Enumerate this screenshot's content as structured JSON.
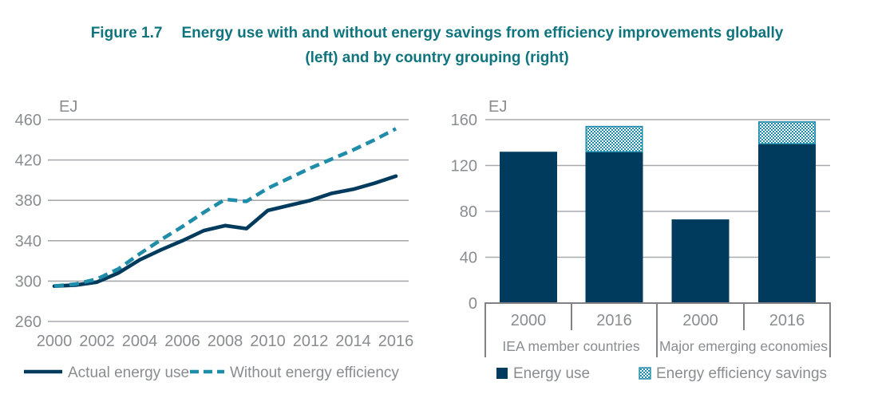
{
  "title": {
    "figure_label": "Figure 1.7",
    "line1": "Energy use with and without energy savings from efficiency improvements globally",
    "line2": "(left) and by country grouping (right)"
  },
  "colors": {
    "navy": "#003a5d",
    "teal": "#1f8caa",
    "title_teal": "#0f747e",
    "axis_text": "#8a8c8f",
    "gridline": "#a8aaad",
    "axis_line": "#808285",
    "pattern_bg": "#ffffff"
  },
  "chart_data": [
    {
      "type": "line",
      "title": "Energy use with and without energy savings from efficiency improvements globally",
      "ylabel": "EJ",
      "ylim": [
        260,
        460
      ],
      "yticks": [
        460,
        420,
        380,
        340,
        300,
        260
      ],
      "x": [
        2000,
        2001,
        2002,
        2003,
        2004,
        2005,
        2006,
        2007,
        2008,
        2009,
        2010,
        2011,
        2012,
        2013,
        2014,
        2015,
        2016
      ],
      "xticks": [
        2000,
        2002,
        2004,
        2006,
        2008,
        2010,
        2012,
        2014,
        2016
      ],
      "grid": true,
      "legend_position": "bottom",
      "series": [
        {
          "name": "Actual energy use",
          "style": "solid",
          "values": [
            295,
            296,
            299,
            308,
            321,
            331,
            340,
            350,
            355,
            352,
            370,
            375,
            380,
            387,
            391,
            397,
            404
          ]
        },
        {
          "name": "Without energy efficiency",
          "style": "dashed",
          "values": [
            295,
            297,
            302,
            312,
            327,
            341,
            354,
            368,
            381,
            379,
            392,
            402,
            412,
            421,
            430,
            440,
            451
          ]
        }
      ]
    },
    {
      "type": "bar",
      "title": "Energy use and energy efficiency savings by country grouping",
      "ylabel": "EJ",
      "ylim": [
        0,
        160
      ],
      "yticks": [
        160,
        120,
        80,
        40,
        0
      ],
      "grid": true,
      "stacked": true,
      "groups": [
        "IEA member countries",
        "Major emerging economies"
      ],
      "bars": [
        {
          "group": "IEA member countries",
          "year": "2000",
          "energy_use": 132,
          "efficiency_savings": 0
        },
        {
          "group": "IEA member countries",
          "year": "2016",
          "energy_use": 132,
          "efficiency_savings": 22
        },
        {
          "group": "Major emerging economies",
          "year": "2000",
          "energy_use": 73,
          "efficiency_savings": 0
        },
        {
          "group": "Major emerging economies",
          "year": "2016",
          "energy_use": 139,
          "efficiency_savings": 19
        }
      ],
      "legend": [
        "Energy use",
        "Energy efficiency savings"
      ],
      "legend_position": "bottom"
    }
  ]
}
